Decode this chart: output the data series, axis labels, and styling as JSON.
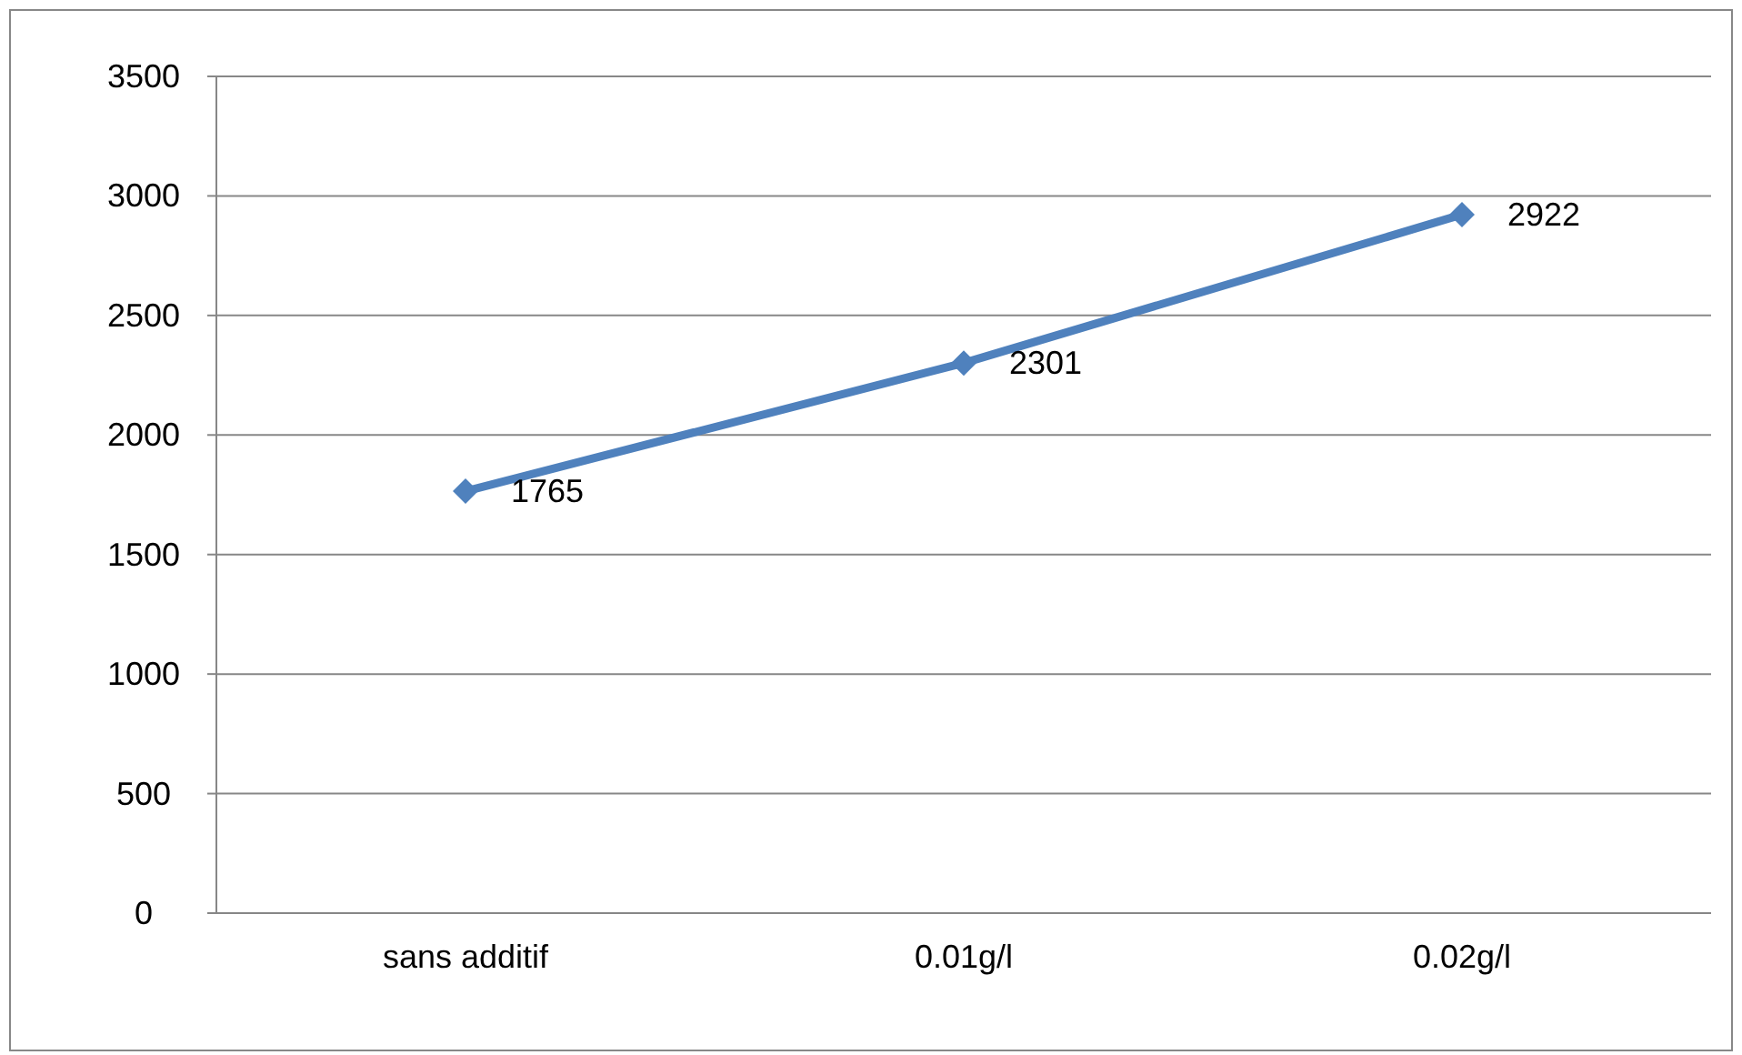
{
  "chart_data": {
    "type": "line",
    "categories": [
      "sans additif",
      "0.01g/l",
      "0.02g/l"
    ],
    "series": [
      {
        "color": "#4f81bd",
        "values": [
          1765,
          2301,
          2922
        ]
      }
    ],
    "ylim": [
      0,
      3500
    ],
    "yticks": [
      0,
      500,
      1000,
      1500,
      2000,
      2500,
      3000,
      3500
    ],
    "grid": "y",
    "marker": "diamond",
    "line_style": "solid",
    "data_labels": true
  }
}
